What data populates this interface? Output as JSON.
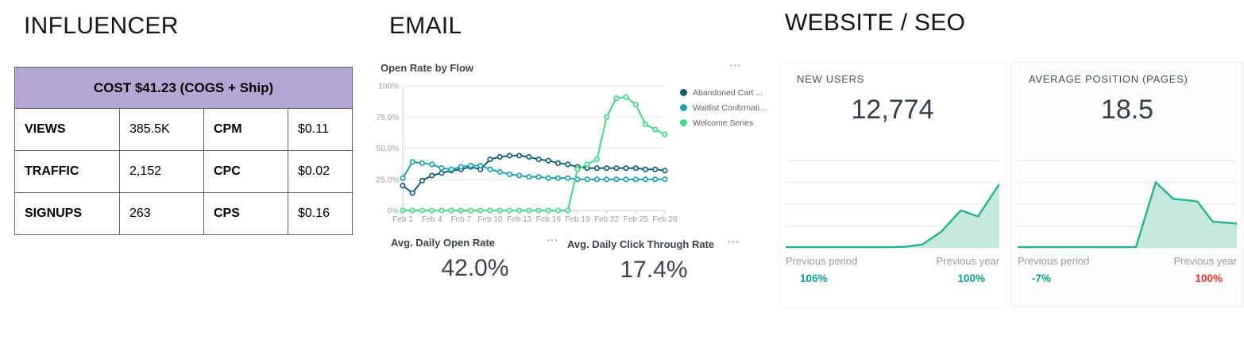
{
  "accent_colors": {
    "table_header_purple": "#b4a7d6",
    "teal_positive": "#10a184",
    "red_negative": "#e2352c"
  },
  "sections": {
    "influencer": {
      "title": "INFLUENCER",
      "table": {
        "header": "COST $41.23 (COGS + Ship)",
        "rows": [
          {
            "c0": "VIEWS",
            "c1": "385.5K",
            "c2": "CPM",
            "c3": "$0.11"
          },
          {
            "c0": "TRAFFIC",
            "c1": "2,152",
            "c2": "CPC",
            "c3": "$0.02"
          },
          {
            "c0": "SIGNUPS",
            "c1": "263",
            "c2": "CPS",
            "c3": "$0.16"
          }
        ]
      }
    },
    "email": {
      "title": "EMAIL",
      "chart_title": "Open Rate by Flow",
      "menu_glyph": "⋯",
      "stats": [
        {
          "label": "Avg. Daily Open Rate",
          "menu_glyph": "⋯",
          "value": "42.0%"
        },
        {
          "label": "Avg. Daily Click Through Rate",
          "menu_glyph": "⋯",
          "value": "17.4%"
        }
      ]
    },
    "website": {
      "title": "WEBSITE / SEO",
      "cards": [
        {
          "label": "NEW USERS",
          "value": "12,774",
          "prev_period_label": "Previous period",
          "prev_year_label": "Previous year",
          "prev_period_value": "106%",
          "prev_year_value": "100%",
          "prev_period_color": "#10a184",
          "prev_year_color": "#10a184"
        },
        {
          "label": "AVERAGE POSITION (PAGES)",
          "value": "18.5",
          "prev_period_label": "Previous period",
          "prev_year_label": "Previous year",
          "prev_period_value": "-7%",
          "prev_year_value": "100%",
          "prev_period_color": "#10a184",
          "prev_year_color": "#e2352c"
        }
      ]
    }
  },
  "chart_data": [
    {
      "id": "open-rate-by-flow",
      "type": "line",
      "title": "Open Rate by Flow",
      "ylim": [
        0,
        100
      ],
      "grid": true,
      "legend_position": "right",
      "y_ticks": [
        {
          "label": "100%",
          "value": 100
        },
        {
          "label": "75.0%",
          "value": 75
        },
        {
          "label": "50.0%",
          "value": 50
        },
        {
          "label": "25.0%",
          "value": 25
        },
        {
          "label": "0%",
          "value": 0
        }
      ],
      "x_days": [
        "Feb 1",
        "Feb 2",
        "Feb 3",
        "Feb 4",
        "Feb 5",
        "Feb 6",
        "Feb 7",
        "Feb 8",
        "Feb 9",
        "Feb 10",
        "Feb 11",
        "Feb 12",
        "Feb 13",
        "Feb 14",
        "Feb 15",
        "Feb 16",
        "Feb 17",
        "Feb 18",
        "Feb 19",
        "Feb 20",
        "Feb 21",
        "Feb 22",
        "Feb 23",
        "Feb 24",
        "Feb 25",
        "Feb 26",
        "Feb 27",
        "Feb 28"
      ],
      "x_tick_labels": [
        "Feb 1",
        "Feb 4",
        "Feb 7",
        "Feb 10",
        "Feb 13",
        "Feb 16",
        "Feb 19",
        "Feb 22",
        "Feb 25",
        "Feb 28"
      ],
      "series": [
        {
          "name": "Abandoned Cart ...",
          "color": "#155e74",
          "values": [
            20,
            14,
            24,
            28,
            30,
            32,
            33,
            35,
            33,
            41,
            43,
            44,
            44,
            43,
            41,
            40,
            38,
            37,
            35,
            34,
            34,
            34,
            34,
            34,
            34,
            33,
            33,
            32
          ]
        },
        {
          "name": "Waitlist Confirmati...",
          "color": "#1ea0af",
          "values": [
            26,
            39,
            38,
            37,
            34,
            33,
            35,
            36,
            36,
            33,
            31,
            29,
            28,
            27,
            27,
            26,
            26,
            26,
            25,
            25,
            25,
            25,
            25,
            25,
            25,
            25,
            25,
            25
          ]
        },
        {
          "name": "Welcome Series",
          "color": "#42d885",
          "values": [
            0,
            0,
            0,
            0,
            0,
            0,
            0,
            0,
            0,
            0,
            0,
            0,
            0,
            0,
            0,
            0,
            0,
            0,
            33,
            37,
            41,
            75,
            90,
            91,
            85,
            69,
            65,
            61
          ]
        }
      ]
    },
    {
      "id": "new-users-trend",
      "type": "area",
      "title": "NEW USERS trend",
      "ylim": [
        0,
        100
      ],
      "stroke": "#26b28e",
      "fill": "#c5e9dc",
      "gridline_fracs": [
        4,
        27,
        50,
        73
      ],
      "points": [
        [
          0,
          1
        ],
        [
          0.5,
          1
        ],
        [
          0.56,
          1.5
        ],
        [
          0.64,
          4
        ],
        [
          0.73,
          19
        ],
        [
          0.82,
          43
        ],
        [
          0.9,
          36
        ],
        [
          1.0,
          73
        ]
      ]
    },
    {
      "id": "avg-position-trend",
      "type": "area",
      "title": "AVERAGE POSITION (PAGES) trend",
      "ylim": [
        0,
        100
      ],
      "stroke": "#26b28e",
      "fill": "#c5e9dc",
      "gridline_fracs": [
        4,
        27,
        50,
        73
      ],
      "points": [
        [
          0,
          1
        ],
        [
          0.54,
          1
        ],
        [
          0.63,
          75
        ],
        [
          0.71,
          56
        ],
        [
          0.79,
          54
        ],
        [
          0.82,
          53
        ],
        [
          0.89,
          30
        ],
        [
          1.0,
          28
        ]
      ]
    }
  ]
}
